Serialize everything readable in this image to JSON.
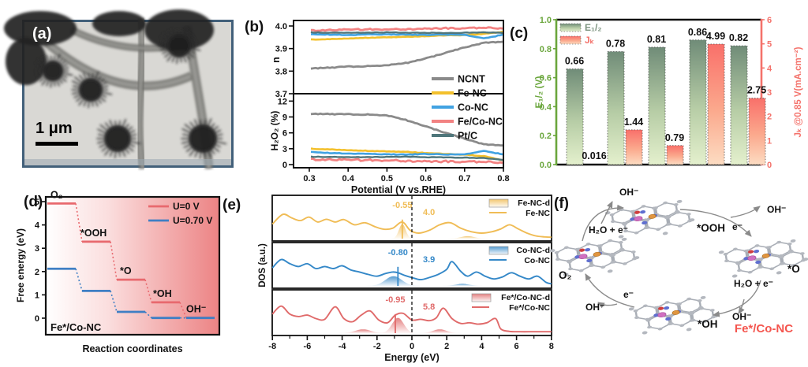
{
  "labels": {
    "a": "(a)",
    "b": "(b)",
    "c": "(c)",
    "d": "(d)",
    "e": "(e)",
    "f": "(f)"
  },
  "panel_a": {
    "scale_bar": "1 μm"
  },
  "chart_data": [
    {
      "panel": "b",
      "type": "line",
      "xlabel": "Potential (V vs.RHE)",
      "x": [
        0.275,
        0.3,
        0.35,
        0.4,
        0.45,
        0.5,
        0.55,
        0.6,
        0.65,
        0.7,
        0.75,
        0.8
      ],
      "xtick_vals": [
        0.3,
        0.4,
        0.5,
        0.6,
        0.7,
        0.8
      ],
      "xtick_labels": [
        "0.3",
        "0.4",
        "0.5",
        "0.6",
        "0.7",
        "0.8"
      ],
      "legend": [
        "NCNT",
        "Fe-NC",
        "Co-NC",
        "Fe/Co-NC",
        "Pt/C"
      ],
      "subplots": [
        {
          "ylabel": "n",
          "ylim": [
            3.7,
            4.02
          ],
          "ytick_vals": [
            3.7,
            3.8,
            3.9,
            4.0
          ],
          "ytick_labels": [
            "3.7",
            "3.8",
            "3.9",
            "4.0"
          ],
          "series": [
            {
              "name": "NCNT",
              "color": "#8a8a8a",
              "amp": 1.1,
              "w": 2.8,
              "values": [
                3.81,
                3.812,
                3.815,
                3.82,
                3.822,
                3.826,
                3.836,
                3.856,
                3.88,
                3.905,
                3.925,
                3.93
              ]
            },
            {
              "name": "Fe-NC",
              "color": "#f3c02c",
              "amp": 0.6,
              "w": 2.6,
              "values": [
                3.938,
                3.94,
                3.942,
                3.945,
                3.948,
                3.95,
                3.952,
                3.955,
                3.958,
                3.96,
                3.965,
                3.975
              ]
            },
            {
              "name": "Co-NC",
              "color": "#41a2e2",
              "amp": 0.8,
              "w": 2.6,
              "values": [
                3.962,
                3.963,
                3.962,
                3.96,
                3.962,
                3.963,
                3.962,
                3.96,
                3.962,
                3.96,
                3.945,
                3.962
              ]
            },
            {
              "name": "Fe/Co-NC",
              "color": "#f28282",
              "amp": 1.6,
              "w": 2.8,
              "values": [
                3.978,
                3.98,
                3.982,
                3.984,
                3.985,
                3.985,
                3.986,
                3.988,
                3.99,
                3.99,
                3.992,
                3.99
              ]
            },
            {
              "name": "Pt/C",
              "color": "#4f767b",
              "amp": 0.6,
              "w": 2.4,
              "values": [
                3.972,
                3.972,
                3.97,
                3.97,
                3.97,
                3.972,
                3.97,
                3.97,
                3.968,
                3.97,
                3.972,
                3.97
              ]
            }
          ]
        },
        {
          "ylabel": "H₂O₂ (%)",
          "ylim": [
            0,
            13.5
          ],
          "ytick_vals": [
            0,
            3,
            6,
            9,
            12
          ],
          "ytick_labels": [
            "0",
            "3",
            "6",
            "9",
            "12"
          ],
          "series": [
            {
              "name": "NCNT",
              "color": "#8a8a8a",
              "amp": 1.1,
              "w": 2.8,
              "values": [
                9.7,
                9.6,
                9.55,
                9.5,
                9.45,
                9.3,
                8.4,
                7.2,
                6.0,
                4.9,
                3.8,
                3.6
              ]
            },
            {
              "name": "Fe-NC",
              "color": "#f3c02c",
              "amp": 0.7,
              "w": 2.6,
              "values": [
                3.1,
                3.0,
                2.9,
                2.75,
                2.6,
                2.5,
                2.4,
                2.2,
                2.0,
                1.9,
                1.6,
                0.8
              ]
            },
            {
              "name": "Co-NC",
              "color": "#41a2e2",
              "amp": 0.8,
              "w": 2.6,
              "values": [
                2.6,
                2.4,
                2.2,
                2.1,
                2.0,
                1.95,
                1.9,
                2.0,
                1.9,
                1.9,
                2.6,
                1.9
              ]
            },
            {
              "name": "Fe/Co-NC",
              "color": "#f28282",
              "amp": 2.2,
              "w": 2.8,
              "values": [
                1.1,
                1.0,
                0.95,
                0.9,
                0.85,
                0.8,
                0.7,
                0.6,
                0.6,
                0.55,
                0.5,
                0.4
              ]
            },
            {
              "name": "Pt/C",
              "color": "#4f767b",
              "amp": 0.6,
              "w": 2.4,
              "values": [
                1.5,
                1.5,
                1.45,
                1.4,
                1.4,
                1.45,
                1.5,
                1.4,
                1.35,
                1.3,
                1.25,
                0.9
              ]
            }
          ]
        }
      ]
    },
    {
      "panel": "c",
      "type": "bar",
      "categories": [
        "",
        "",
        "",
        "",
        ""
      ],
      "series": [
        {
          "name": "E₁/₂",
          "axis": "left",
          "color_top": "#708c78",
          "color_mid": "#b7cda6",
          "color_bottom": "#e4f0cd",
          "values": [
            0.66,
            0.78,
            0.81,
            0.86,
            0.82
          ],
          "labels": [
            "0.66",
            "0.78",
            "0.81",
            "0.86",
            "0.82"
          ]
        },
        {
          "name": "Jₖ",
          "axis": "right",
          "color_top": "#f9706a",
          "color_mid": "#fba98d",
          "color_bottom": "#fcdcc2",
          "values": [
            0.016,
            1.44,
            0.79,
            4.99,
            2.75
          ],
          "labels": [
            "0.016",
            "1.44",
            "0.79",
            "4.99",
            "2.75"
          ]
        }
      ],
      "left_axis": {
        "label": "E₁/₂ (V)",
        "color": "#6aa63c",
        "text_color": "#7d9480",
        "lim": [
          0,
          1
        ],
        "tick_vals": [
          0,
          0.2,
          0.4,
          0.6,
          0.8,
          1.0
        ],
        "tick_labels": [
          "0.0",
          "0.2",
          "0.4",
          "0.6",
          "0.8",
          "1.0"
        ]
      },
      "right_axis": {
        "label": "Jₖ @0.85 V(mA.cm⁻²)",
        "color": "#f4726b",
        "lim": [
          0,
          6
        ],
        "tick_vals": [
          0,
          1,
          2,
          3,
          4,
          5,
          6
        ],
        "tick_labels": [
          "0",
          "1",
          "2",
          "3",
          "4",
          "5",
          "6"
        ]
      }
    },
    {
      "panel": "d",
      "type": "step",
      "annotation": "Fe*/Co-NC",
      "xlabel": "Reaction coordinates",
      "ylabel": "Free energy (eV)",
      "ytick_vals": [
        0,
        1,
        2,
        3,
        4,
        5
      ],
      "ytick_labels": [
        "0",
        "1",
        "2",
        "3",
        "4",
        "5"
      ],
      "step_labels": [
        "O₂",
        "*OOH",
        "*O",
        "*OH",
        "OH⁻"
      ],
      "series": [
        {
          "name": "U=0 V",
          "color": "#e8696e",
          "values": [
            4.92,
            3.28,
            1.65,
            0.68,
            0.02
          ]
        },
        {
          "name": "U=0.70 V",
          "color": "#3f7fc4",
          "values": [
            2.12,
            1.17,
            0.27,
            0.01,
            0.01
          ]
        }
      ]
    },
    {
      "panel": "e",
      "type": "line",
      "xlabel": "Energy (eV)",
      "ylabel": "DOS (a.u.)",
      "xlim": [
        -8.2,
        8.2
      ],
      "xtick_vals": [
        -8,
        -6,
        -4,
        -2,
        0,
        2,
        4,
        6,
        8
      ],
      "xtick_labels": [
        "-8",
        "-6",
        "-4",
        "-2",
        "0",
        "2",
        "4",
        "6",
        "8"
      ],
      "fermi_line_x": 0,
      "subplots": [
        {
          "name": "Fe-NC",
          "fill_name": "Fe-NC-d",
          "color": "#f0bc55",
          "d_center": -0.55,
          "d_center_label": "-0.55",
          "gap_label": "4.0",
          "humps": [
            [
              -0.55,
              0.35,
              0.42
            ],
            [
              3.2,
              0.7,
              0.07
            ]
          ],
          "curve": [
            [
              -8,
              0.42
            ],
            [
              -7.4,
              0.7
            ],
            [
              -6.9,
              0.6
            ],
            [
              -6.4,
              0.52
            ],
            [
              -5.9,
              0.62
            ],
            [
              -5.4,
              0.48
            ],
            [
              -4.9,
              0.56
            ],
            [
              -4.4,
              0.48
            ],
            [
              -3.9,
              0.55
            ],
            [
              -3.3,
              0.4
            ],
            [
              -2.7,
              0.46
            ],
            [
              -2.1,
              0.34
            ],
            [
              -1.6,
              0.27
            ],
            [
              -1.1,
              0.3
            ],
            [
              -0.55,
              0.48
            ],
            [
              -0.1,
              0.24
            ],
            [
              0.4,
              0.16
            ],
            [
              1.0,
              0.24
            ],
            [
              1.6,
              0.4
            ],
            [
              2.2,
              0.46
            ],
            [
              2.8,
              0.3
            ],
            [
              3.4,
              0.2
            ],
            [
              4.0,
              0.16
            ],
            [
              4.6,
              0.2
            ],
            [
              5.1,
              0.28
            ],
            [
              5.6,
              0.4
            ],
            [
              6.1,
              0.28
            ],
            [
              6.6,
              0.16
            ],
            [
              7.1,
              0.08
            ],
            [
              7.6,
              0.05
            ],
            [
              8,
              0.04
            ]
          ]
        },
        {
          "name": "Co-NC",
          "fill_name": "Co-NC-d",
          "color": "#3488c8",
          "d_center": -0.8,
          "d_center_label": "-0.80",
          "gap_label": "3.9",
          "humps": [
            [
              -1.05,
              0.85,
              0.28
            ],
            [
              2.9,
              0.7,
              0.06
            ]
          ],
          "curve": [
            [
              -8,
              0.52
            ],
            [
              -7.5,
              0.76
            ],
            [
              -7.0,
              0.64
            ],
            [
              -6.5,
              0.56
            ],
            [
              -6.0,
              0.64
            ],
            [
              -5.5,
              0.5
            ],
            [
              -5.0,
              0.56
            ],
            [
              -4.5,
              0.5
            ],
            [
              -4.0,
              0.58
            ],
            [
              -3.5,
              0.46
            ],
            [
              -3.0,
              0.4
            ],
            [
              -2.5,
              0.33
            ],
            [
              -2.0,
              0.28
            ],
            [
              -1.5,
              0.36
            ],
            [
              -1.1,
              0.4
            ],
            [
              -0.8,
              0.38
            ],
            [
              -0.4,
              0.3
            ],
            [
              0.0,
              0.24
            ],
            [
              0.5,
              0.18
            ],
            [
              1.0,
              0.24
            ],
            [
              1.5,
              0.33
            ],
            [
              2.0,
              0.48
            ],
            [
              2.3,
              0.7
            ],
            [
              2.8,
              0.42
            ],
            [
              3.2,
              0.28
            ],
            [
              3.7,
              0.4
            ],
            [
              4.2,
              0.28
            ],
            [
              4.7,
              0.2
            ],
            [
              5.2,
              0.26
            ],
            [
              5.7,
              0.38
            ],
            [
              6.2,
              0.28
            ],
            [
              6.7,
              0.2
            ],
            [
              7.2,
              0.28
            ],
            [
              7.7,
              0.1
            ],
            [
              8,
              0.06
            ]
          ]
        },
        {
          "name": "Fe*/Co-NC",
          "fill_name": "Fe*/Co-NC-d",
          "color": "#e06a6a",
          "d_center": -0.95,
          "d_center_label": "-0.95",
          "gap_label": "5.8",
          "humps": [
            [
              -0.8,
              0.6,
              0.44
            ],
            [
              -2.8,
              0.8,
              0.11
            ],
            [
              1.6,
              0.7,
              0.11
            ]
          ],
          "curve": [
            [
              -8,
              0.55
            ],
            [
              -7.5,
              0.78
            ],
            [
              -7.0,
              0.55
            ],
            [
              -6.5,
              0.48
            ],
            [
              -6.0,
              0.52
            ],
            [
              -5.5,
              0.42
            ],
            [
              -5.0,
              0.4
            ],
            [
              -4.4,
              0.76
            ],
            [
              -3.9,
              0.42
            ],
            [
              -3.4,
              0.33
            ],
            [
              -2.9,
              0.52
            ],
            [
              -2.4,
              0.64
            ],
            [
              -1.9,
              0.38
            ],
            [
              -1.4,
              0.3
            ],
            [
              -0.95,
              0.52
            ],
            [
              -0.5,
              0.57
            ],
            [
              0.0,
              0.38
            ],
            [
              0.5,
              0.4
            ],
            [
              1.0,
              0.36
            ],
            [
              1.4,
              0.44
            ],
            [
              1.8,
              0.72
            ],
            [
              2.3,
              0.42
            ],
            [
              2.8,
              0.28
            ],
            [
              3.3,
              0.3
            ],
            [
              3.8,
              0.26
            ],
            [
              4.3,
              0.3
            ],
            [
              4.8,
              0.42
            ],
            [
              5.1,
              0.12
            ],
            [
              5.6,
              0.05
            ],
            [
              6.2,
              0.04
            ],
            [
              7.0,
              0.04
            ],
            [
              8,
              0.04
            ]
          ]
        }
      ]
    }
  ],
  "panel_f": {
    "species": {
      "o2": "O₂",
      "ooh": "*OOH",
      "o": "*O",
      "oh_ads": "*OH"
    },
    "oh_minus": "OH⁻",
    "h2o_e": "H₂O + e⁻",
    "e_minus": "e⁻",
    "catalyst": "Fe*/Co-NC",
    "catalyst_color": "#f4554e"
  }
}
